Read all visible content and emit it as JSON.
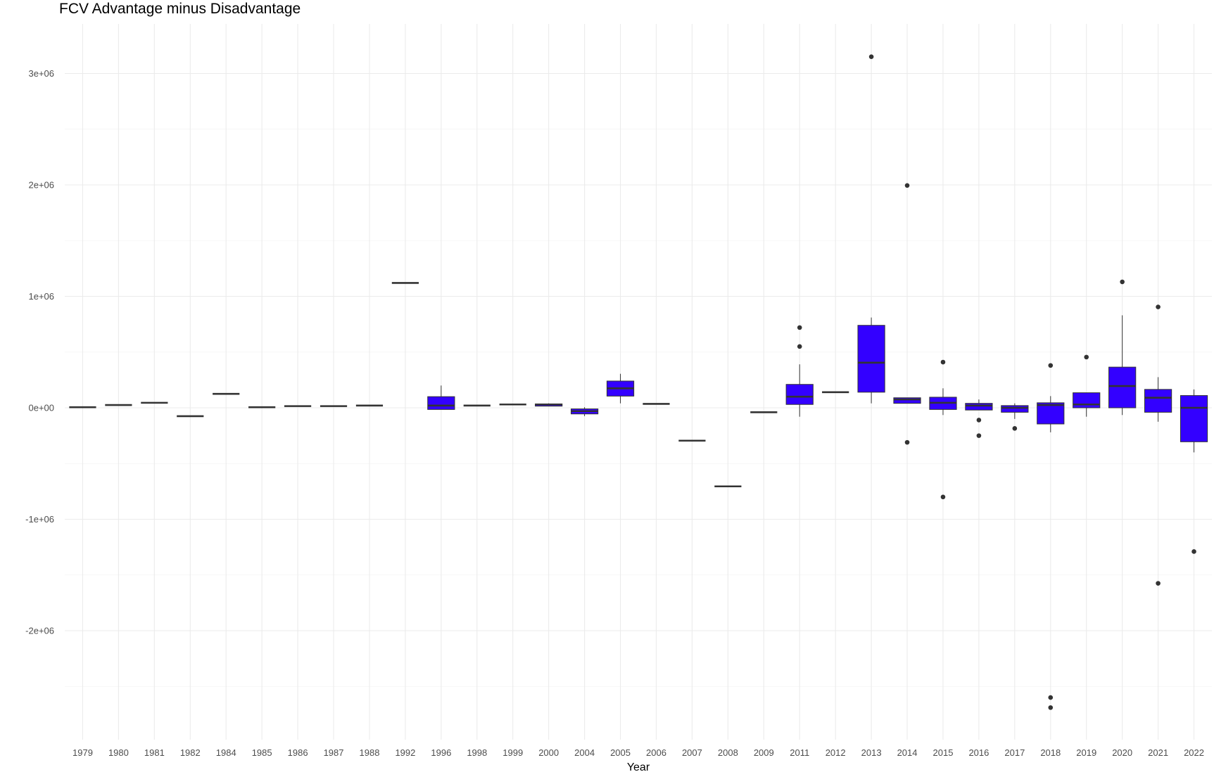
{
  "chart_data": {
    "type": "boxplot",
    "title": "FCV Advantage minus Disadvantage",
    "xlabel": "Year",
    "ylabel": "",
    "categories": [
      "1979",
      "1980",
      "1981",
      "1982",
      "1984",
      "1985",
      "1986",
      "1987",
      "1988",
      "1992",
      "1996",
      "1998",
      "1999",
      "2000",
      "2004",
      "2005",
      "2006",
      "2007",
      "2008",
      "2009",
      "2011",
      "2012",
      "2013",
      "2014",
      "2015",
      "2016",
      "2017",
      "2018",
      "2019",
      "2020",
      "2021",
      "2022"
    ],
    "ylim": [
      -3000000,
      3350000
    ],
    "y_ticks": [
      -2000000,
      -1000000,
      0,
      1000000,
      2000000,
      3000000
    ],
    "y_tick_labels": [
      "-2e+06",
      "-1e+06",
      "0e+00",
      "1e+06",
      "2e+06",
      "3e+06"
    ],
    "fill_color": "#3300ff",
    "line_color": "#333333",
    "grid": true,
    "legend": "none",
    "boxes": [
      {
        "year": "1979",
        "min": 5000,
        "q1": 5000,
        "median": 5000,
        "q3": 5000,
        "max": 5000,
        "outliers": []
      },
      {
        "year": "1980",
        "min": 25000,
        "q1": 25000,
        "median": 25000,
        "q3": 25000,
        "max": 25000,
        "outliers": []
      },
      {
        "year": "1981",
        "min": 45000,
        "q1": 45000,
        "median": 45000,
        "q3": 45000,
        "max": 45000,
        "outliers": []
      },
      {
        "year": "1982",
        "min": -75000,
        "q1": -75000,
        "median": -75000,
        "q3": -75000,
        "max": -75000,
        "outliers": []
      },
      {
        "year": "1984",
        "min": 125000,
        "q1": 125000,
        "median": 125000,
        "q3": 125000,
        "max": 125000,
        "outliers": []
      },
      {
        "year": "1985",
        "min": 5000,
        "q1": 5000,
        "median": 5000,
        "q3": 5000,
        "max": 5000,
        "outliers": []
      },
      {
        "year": "1986",
        "min": 15000,
        "q1": 15000,
        "median": 15000,
        "q3": 15000,
        "max": 15000,
        "outliers": []
      },
      {
        "year": "1987",
        "min": 15000,
        "q1": 15000,
        "median": 15000,
        "q3": 15000,
        "max": 15000,
        "outliers": []
      },
      {
        "year": "1988",
        "min": 20000,
        "q1": 20000,
        "median": 20000,
        "q3": 20000,
        "max": 20000,
        "outliers": []
      },
      {
        "year": "1992",
        "min": 1120000,
        "q1": 1120000,
        "median": 1120000,
        "q3": 1120000,
        "max": 1120000,
        "outliers": []
      },
      {
        "year": "1996",
        "min": -15000,
        "q1": -15000,
        "median": 20000,
        "q3": 100000,
        "max": 200000,
        "outliers": []
      },
      {
        "year": "1998",
        "min": 20000,
        "q1": 20000,
        "median": 20000,
        "q3": 20000,
        "max": 20000,
        "outliers": []
      },
      {
        "year": "1999",
        "min": 30000,
        "q1": 30000,
        "median": 30000,
        "q3": 30000,
        "max": 30000,
        "outliers": []
      },
      {
        "year": "2000",
        "min": 15000,
        "q1": 15000,
        "median": 30000,
        "q3": 35000,
        "max": 40000,
        "outliers": []
      },
      {
        "year": "2004",
        "min": -75000,
        "q1": -55000,
        "median": -30000,
        "q3": -10000,
        "max": 5000,
        "outliers": []
      },
      {
        "year": "2005",
        "min": 40000,
        "q1": 105000,
        "median": 175000,
        "q3": 240000,
        "max": 305000,
        "outliers": []
      },
      {
        "year": "2006",
        "min": 35000,
        "q1": 35000,
        "median": 35000,
        "q3": 35000,
        "max": 35000,
        "outliers": []
      },
      {
        "year": "2007",
        "min": -295000,
        "q1": -295000,
        "median": -295000,
        "q3": -295000,
        "max": -295000,
        "outliers": []
      },
      {
        "year": "2008",
        "min": -705000,
        "q1": -705000,
        "median": -705000,
        "q3": -705000,
        "max": -705000,
        "outliers": []
      },
      {
        "year": "2009",
        "min": -40000,
        "q1": -40000,
        "median": -40000,
        "q3": -40000,
        "max": -40000,
        "outliers": []
      },
      {
        "year": "2011",
        "min": -80000,
        "q1": 30000,
        "median": 100000,
        "q3": 210000,
        "max": 390000,
        "outliers": [
          550000,
          720000
        ]
      },
      {
        "year": "2012",
        "min": 140000,
        "q1": 140000,
        "median": 140000,
        "q3": 140000,
        "max": 140000,
        "outliers": []
      },
      {
        "year": "2013",
        "min": 40000,
        "q1": 140000,
        "median": 405000,
        "q3": 740000,
        "max": 810000,
        "outliers": [
          3150000
        ]
      },
      {
        "year": "2014",
        "min": 40000,
        "q1": 40000,
        "median": 75000,
        "q3": 90000,
        "max": 90000,
        "outliers": [
          1995000,
          -310000
        ]
      },
      {
        "year": "2015",
        "min": -65000,
        "q1": -15000,
        "median": 45000,
        "q3": 95000,
        "max": 175000,
        "outliers": [
          410000,
          -800000
        ]
      },
      {
        "year": "2016",
        "min": -20000,
        "q1": -20000,
        "median": 20000,
        "q3": 40000,
        "max": 75000,
        "outliers": [
          -110000,
          -250000
        ]
      },
      {
        "year": "2017",
        "min": -100000,
        "q1": -40000,
        "median": 0,
        "q3": 20000,
        "max": 40000,
        "outliers": [
          -185000
        ]
      },
      {
        "year": "2018",
        "min": -220000,
        "q1": -145000,
        "median": 25000,
        "q3": 45000,
        "max": 105000,
        "outliers": [
          380000,
          -2600000,
          -2690000
        ]
      },
      {
        "year": "2019",
        "min": -80000,
        "q1": 0,
        "median": 30000,
        "q3": 135000,
        "max": 135000,
        "outliers": [
          455000
        ]
      },
      {
        "year": "2020",
        "min": -65000,
        "q1": 0,
        "median": 195000,
        "q3": 365000,
        "max": 830000,
        "outliers": [
          1130000
        ]
      },
      {
        "year": "2021",
        "min": -125000,
        "q1": -40000,
        "median": 90000,
        "q3": 165000,
        "max": 275000,
        "outliers": [
          905000,
          -1575000
        ]
      },
      {
        "year": "2022",
        "min": -400000,
        "q1": -305000,
        "median": 0,
        "q3": 110000,
        "max": 165000,
        "outliers": [
          -1290000
        ]
      }
    ]
  }
}
